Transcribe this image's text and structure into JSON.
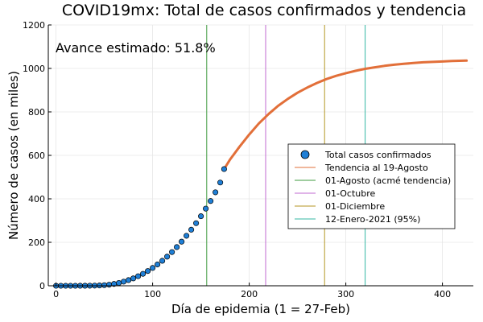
{
  "chart_data": {
    "type": "line",
    "title": "COVID19mx: Total de casos confirmados y tendencia",
    "xlabel": "Día de epidemia (1 = 27-Feb)",
    "ylabel": "Número de casos (en miles)",
    "xlim": [
      -8,
      432
    ],
    "ylim": [
      0,
      1200
    ],
    "xticks": [
      0,
      100,
      200,
      300,
      400
    ],
    "yticks": [
      0,
      200,
      400,
      600,
      800,
      1000,
      1200
    ],
    "grid": true,
    "legend_position": "right",
    "annotation": "Avance estimado: 51.8%",
    "series": [
      {
        "name": "Total casos confirmados",
        "kind": "scatter",
        "color": "#1f7fd6",
        "x": [
          0,
          5,
          10,
          15,
          20,
          25,
          30,
          35,
          40,
          45,
          50,
          55,
          60,
          65,
          70,
          75,
          80,
          85,
          90,
          95,
          100,
          105,
          110,
          115,
          120,
          125,
          130,
          135,
          140,
          145,
          150,
          155,
          160,
          165,
          170,
          174
        ],
        "y": [
          0,
          0,
          0,
          0,
          0,
          0.1,
          0.2,
          0.4,
          0.8,
          1.5,
          2.8,
          5,
          8.5,
          13,
          19,
          26,
          34,
          44,
          55,
          68,
          82,
          98,
          115,
          134,
          155,
          178,
          203,
          230,
          258,
          288,
          320,
          355,
          390,
          430,
          475,
          537
        ]
      },
      {
        "name": "Tendencia al 19-Agosto",
        "kind": "line",
        "color": "#e26f39",
        "x": [
          174,
          180,
          190,
          200,
          210,
          220,
          230,
          240,
          250,
          260,
          270,
          280,
          290,
          300,
          310,
          320,
          330,
          340,
          350,
          360,
          370,
          380,
          390,
          400,
          410,
          425
        ],
        "y": [
          537,
          580,
          640,
          696,
          747,
          790,
          828,
          860,
          888,
          912,
          933,
          951,
          966,
          978,
          989,
          998,
          1005,
          1012,
          1017,
          1021,
          1025,
          1028,
          1030,
          1032,
          1034,
          1036
        ]
      }
    ],
    "vlines": [
      {
        "name": "01-Agosto (acmé tendencia)",
        "x": 156,
        "color": "#3f9b3f"
      },
      {
        "name": "01-Octubre",
        "x": 217,
        "color": "#c06ad1"
      },
      {
        "name": "01-Diciembre",
        "x": 278,
        "color": "#b59623"
      },
      {
        "name": "12-Enero-2021 (95%)",
        "x": 320,
        "color": "#34b7a3"
      }
    ]
  }
}
